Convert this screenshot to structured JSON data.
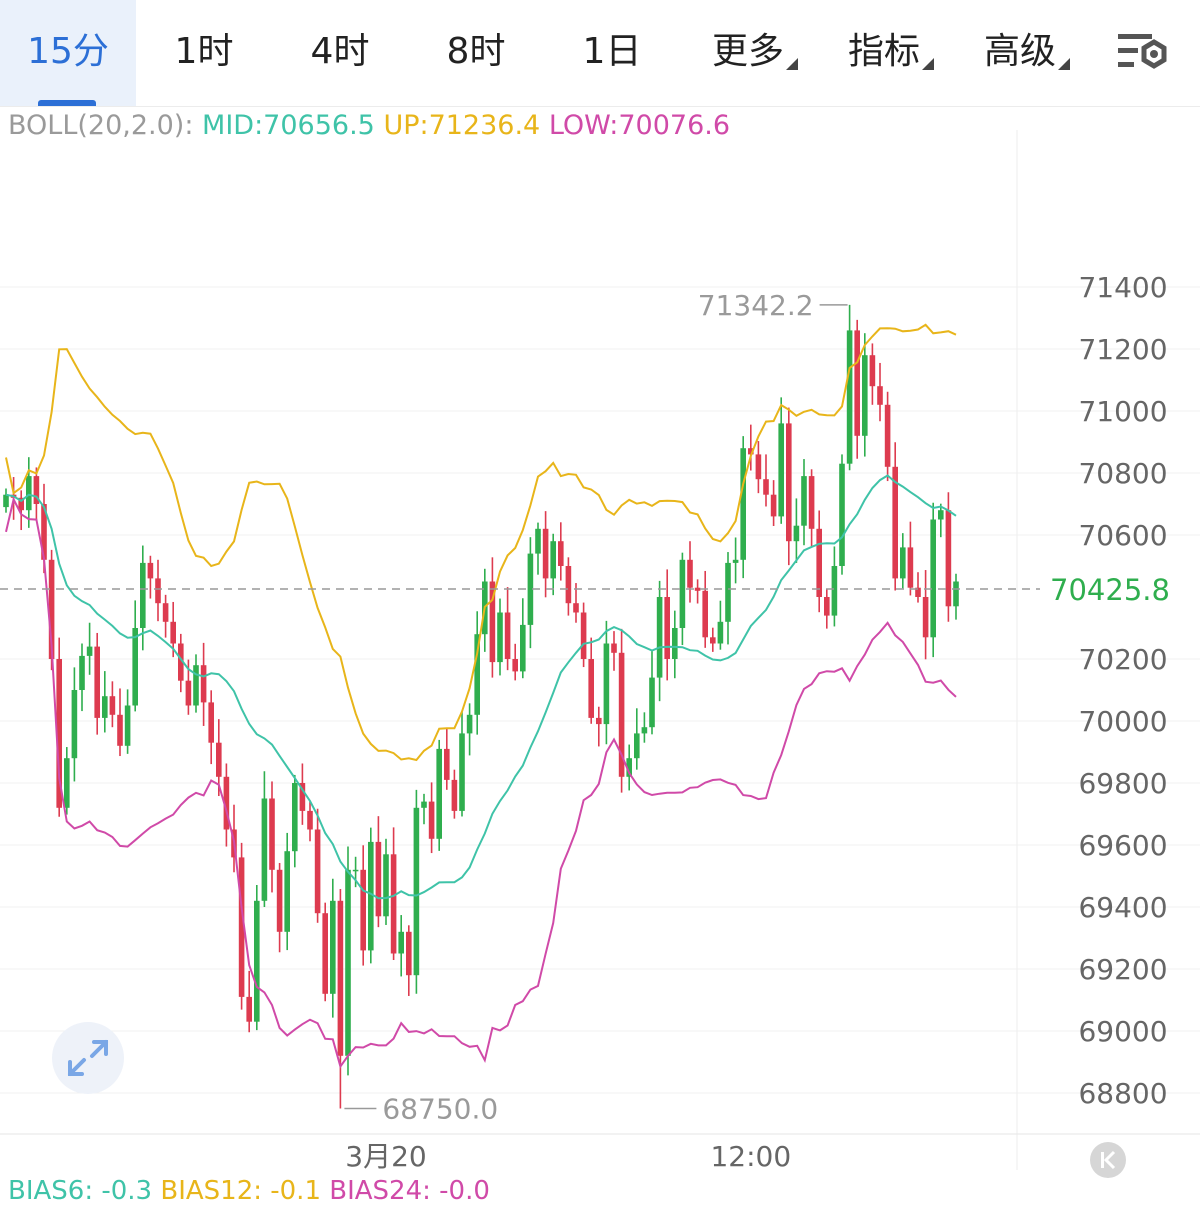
{
  "tabs": [
    {
      "label": "15分",
      "active": true,
      "dropdown": false
    },
    {
      "label": "1时",
      "active": false,
      "dropdown": false
    },
    {
      "label": "4时",
      "active": false,
      "dropdown": false
    },
    {
      "label": "8时",
      "active": false,
      "dropdown": false
    },
    {
      "label": "1日",
      "active": false,
      "dropdown": false
    },
    {
      "label": "更多",
      "active": false,
      "dropdown": true
    },
    {
      "label": "指标",
      "active": false,
      "dropdown": true
    },
    {
      "label": "高级",
      "active": false,
      "dropdown": true
    }
  ],
  "settings_icon": "chart-settings-icon",
  "boll": {
    "label": "BOLL(20,2.0):",
    "mid": "MID:70656.5",
    "up": "UP:71236.4",
    "low": "LOW:70076.6"
  },
  "bias": {
    "b6": "BIAS6: -0.3",
    "b12": "BIAS12: -0.1",
    "b24": "BIAS24: -0.0"
  },
  "colors": {
    "accent": "#2c6fd6",
    "up_candle": "#2fae4e",
    "down_candle": "#dd3b4f",
    "boll_mid": "#3fc3a8",
    "boll_up": "#e8b51a",
    "boll_low": "#d04aa8",
    "label_gray": "#9a9a9a"
  },
  "icons": {
    "expand": "expand-arrows-icon",
    "back": "scroll-to-latest-icon"
  },
  "chart_data": {
    "type": "candlestick",
    "interval": "15分",
    "y_ticks": [
      71400,
      71200,
      71000,
      70800,
      70600,
      70200,
      70000,
      69800,
      69600,
      69400,
      69200,
      69000,
      68800
    ],
    "y_tick_labels": [
      "71400",
      "71200",
      "71000",
      "70800",
      "70600",
      "70200",
      "70000",
      "69800",
      "69600",
      "69400",
      "69200",
      "69000",
      "68800"
    ],
    "ylim": [
      68750,
      71550
    ],
    "x_labels": [
      {
        "label": "3月20",
        "index": 50
      },
      {
        "label": "12:00",
        "index": 98
      }
    ],
    "current_price": 70425.8,
    "current_price_label": "70425.8",
    "high": {
      "value": 71342.2,
      "label": "71342.2",
      "index": 111
    },
    "low": {
      "value": 68750.0,
      "label": "68750.0",
      "index": 44
    },
    "closes": [
      70730,
      70720,
      70680,
      70790,
      70700,
      70520,
      70200,
      69720,
      69880,
      70100,
      70210,
      70240,
      70010,
      70080,
      70020,
      69920,
      70050,
      70300,
      70510,
      70460,
      70380,
      70320,
      70250,
      70130,
      70050,
      70180,
      70060,
      69930,
      69820,
      69650,
      69560,
      69110,
      69030,
      69420,
      69750,
      69520,
      69320,
      69580,
      69800,
      69710,
      69650,
      69380,
      69120,
      69420,
      68920,
      69520,
      69520,
      69260,
      69610,
      69370,
      69570,
      69250,
      69320,
      69180,
      69720,
      69740,
      69620,
      69910,
      69810,
      69710,
      69960,
      70020,
      70280,
      70450,
      70190,
      70350,
      70200,
      70160,
      70310,
      70540,
      70620,
      70460,
      70580,
      70500,
      70380,
      70350,
      70200,
      70010,
      69990,
      70250,
      70220,
      69820,
      69880,
      69960,
      69980,
      70140,
      70400,
      70200,
      70300,
      70520,
      70430,
      70420,
      70270,
      70250,
      70320,
      70510,
      70520,
      70880,
      70860,
      70780,
      70730,
      70660,
      70960,
      70580,
      70630,
      70790,
      70620,
      70400,
      70340,
      70500,
      70830,
      71260,
      70920,
      71180,
      71080,
      71020,
      70820,
      70460,
      70560,
      70430,
      70400,
      70270,
      70650,
      70680,
      70370,
      70450
    ]
  }
}
